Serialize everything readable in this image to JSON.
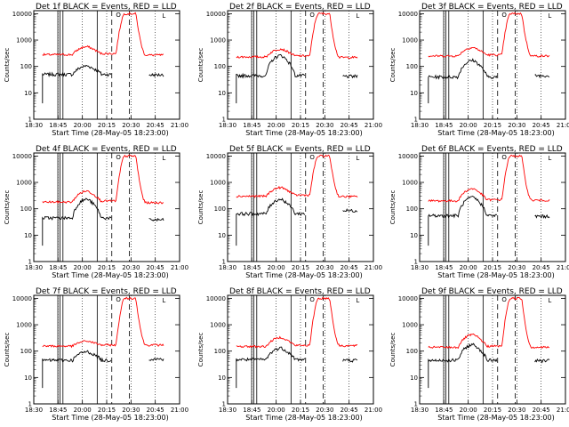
{
  "figure": {
    "ylabel": "Counts/sec",
    "xlabel": "Start Time (28-May-05 18:23:00)",
    "x_tick_labels": [
      "18:30",
      "18:45",
      "20:00",
      "20:15",
      "20:30",
      "20:45",
      "21:00"
    ],
    "y_tick_labels": [
      "1",
      "10",
      "100",
      "1000",
      "10000"
    ]
  },
  "chart_data": [
    {
      "type": "line",
      "title": "Det 1f BLACK = Events, RED = LLD",
      "legend_mark": "O",
      "flag_label": "L",
      "series": [
        {
          "name": "Events",
          "color": "#000000",
          "baseline": 50,
          "bump": 105,
          "tail": 48
        },
        {
          "name": "LLD",
          "color": "#ff0000",
          "baseline": 280,
          "bump": 560,
          "peak": 10000,
          "tail": 270
        }
      ],
      "ylim": [
        1,
        13000
      ],
      "xlim": [
        0,
        1
      ]
    },
    {
      "type": "line",
      "title": "Det 2f BLACK = Events, RED = LLD",
      "legend_mark": "O",
      "flag_label": "L",
      "series": [
        {
          "name": "Events",
          "color": "#000000",
          "baseline": 45,
          "bump": 260,
          "tail": 42
        },
        {
          "name": "LLD",
          "color": "#ff0000",
          "baseline": 230,
          "bump": 460,
          "peak": 10000,
          "tail": 220
        }
      ],
      "ylim": [
        1,
        13000
      ],
      "xlim": [
        0,
        1
      ]
    },
    {
      "type": "line",
      "title": "Det 3f BLACK = Events, RED = LLD",
      "legend_mark": "O",
      "flag_label": "L",
      "series": [
        {
          "name": "Events",
          "color": "#000000",
          "baseline": 40,
          "bump": 170,
          "tail": 45
        },
        {
          "name": "LLD",
          "color": "#ff0000",
          "baseline": 250,
          "bump": 520,
          "peak": 10000,
          "tail": 250
        }
      ],
      "ylim": [
        1,
        13000
      ],
      "xlim": [
        0,
        1
      ]
    },
    {
      "type": "line",
      "title": "Det 4f BLACK = Events, RED = LLD",
      "legend_mark": "O",
      "flag_label": "L",
      "series": [
        {
          "name": "Events",
          "color": "#000000",
          "baseline": 45,
          "bump": 230,
          "tail": 38
        },
        {
          "name": "LLD",
          "color": "#ff0000",
          "baseline": 180,
          "bump": 470,
          "peak": 10000,
          "tail": 170
        }
      ],
      "ylim": [
        1,
        13000
      ],
      "xlim": [
        0,
        1
      ]
    },
    {
      "type": "line",
      "title": "Det 5f BLACK = Events, RED = LLD",
      "legend_mark": "O",
      "flag_label": "L",
      "series": [
        {
          "name": "Events",
          "color": "#000000",
          "baseline": 65,
          "bump": 230,
          "tail": 85
        },
        {
          "name": "LLD",
          "color": "#ff0000",
          "baseline": 300,
          "bump": 640,
          "peak": 10000,
          "tail": 290
        }
      ],
      "ylim": [
        1,
        13000
      ],
      "xlim": [
        0,
        1
      ]
    },
    {
      "type": "line",
      "title": "Det 6f BLACK = Events, RED = LLD",
      "legend_mark": "O",
      "flag_label": "L",
      "series": [
        {
          "name": "Events",
          "color": "#000000",
          "baseline": 55,
          "bump": 270,
          "tail": 52
        },
        {
          "name": "LLD",
          "color": "#ff0000",
          "baseline": 200,
          "bump": 580,
          "peak": 10000,
          "tail": 210
        }
      ],
      "ylim": [
        1,
        13000
      ],
      "xlim": [
        0,
        1
      ]
    },
    {
      "type": "line",
      "title": "Det 7f BLACK = Events, RED = LLD",
      "legend_mark": "O",
      "flag_label": "L",
      "series": [
        {
          "name": "Events",
          "color": "#000000",
          "baseline": 45,
          "bump": 95,
          "tail": 50
        },
        {
          "name": "LLD",
          "color": "#ff0000",
          "baseline": 155,
          "bump": 240,
          "peak": 10000,
          "tail": 170
        }
      ],
      "ylim": [
        1,
        13000
      ],
      "xlim": [
        0,
        1
      ]
    },
    {
      "type": "line",
      "title": "Det 8f BLACK = Events, RED = LLD",
      "legend_mark": "O",
      "flag_label": "L",
      "series": [
        {
          "name": "Events",
          "color": "#000000",
          "baseline": 48,
          "bump": 130,
          "tail": 45
        },
        {
          "name": "LLD",
          "color": "#ff0000",
          "baseline": 150,
          "bump": 330,
          "peak": 10000,
          "tail": 160
        }
      ],
      "ylim": [
        1,
        13000
      ],
      "xlim": [
        0,
        1
      ]
    },
    {
      "type": "line",
      "title": "Det 9f BLACK = Events, RED = LLD",
      "legend_mark": "O",
      "flag_label": "L",
      "series": [
        {
          "name": "Events",
          "color": "#000000",
          "baseline": 45,
          "bump": 175,
          "tail": 43
        },
        {
          "name": "LLD",
          "color": "#ff0000",
          "baseline": 140,
          "bump": 420,
          "peak": 10000,
          "tail": 140
        }
      ],
      "ylim": [
        1,
        13000
      ],
      "xlim": [
        0,
        1
      ]
    }
  ]
}
